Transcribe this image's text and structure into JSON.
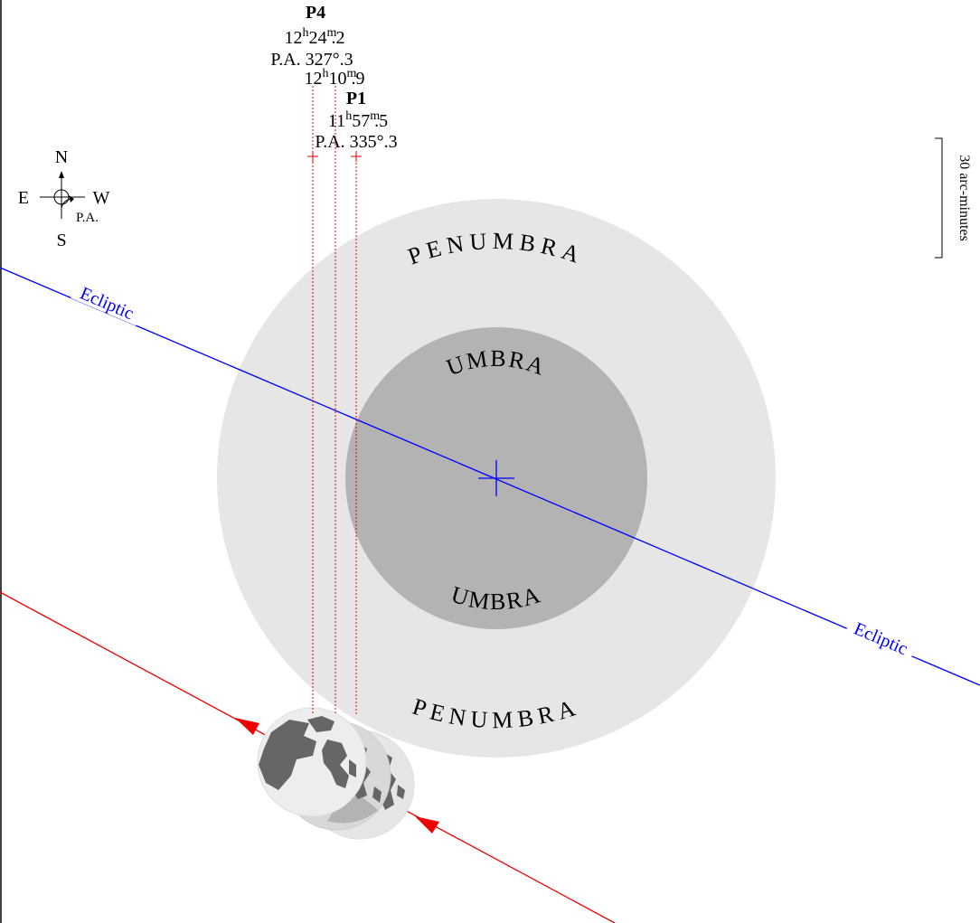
{
  "contacts": [
    {
      "label": "P4",
      "time": [
        "12",
        "h",
        "24",
        "m",
        ".2"
      ],
      "pa": "P.A. 327°.3"
    },
    {
      "label": "P1",
      "time": [
        "11",
        "h",
        "57",
        "m",
        ".5"
      ],
      "pa": "P.A. 335°.3"
    }
  ],
  "greatest": {
    "time": [
      "12",
      "h",
      "10",
      "m",
      ".9"
    ]
  },
  "compass": {
    "north": "N",
    "east": "E",
    "west": "W",
    "south": "S",
    "pa": "P.A."
  },
  "scale": "30 arc-minutes",
  "shadows": {
    "penumbra_top": "PENUMBRA",
    "penumbra_bottom": "PENUMBRA",
    "umbra_top": "UMBRA",
    "umbra_bottom": "UMBRA"
  },
  "ecliptic": [
    "Ecliptic",
    "Ecliptic"
  ]
}
